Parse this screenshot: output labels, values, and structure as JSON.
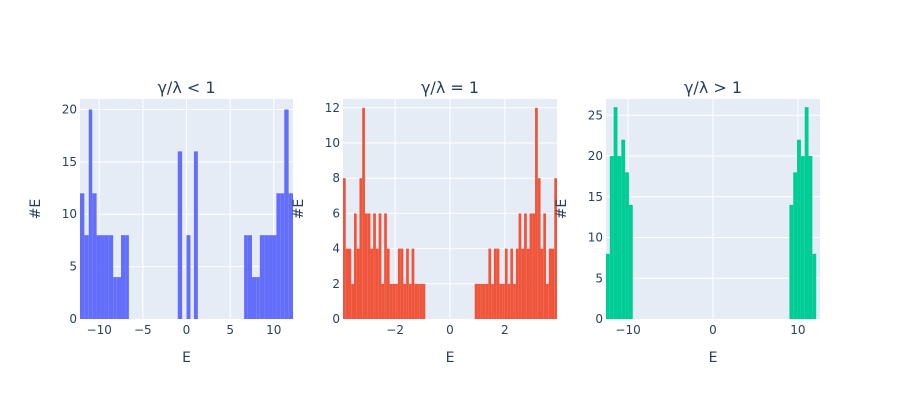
{
  "chart_data": [
    {
      "type": "bar",
      "title": "γ/λ < 1",
      "xlabel": "E",
      "ylabel": "#E",
      "color": "#636efa",
      "plot_bg": "#e5ecf6",
      "xlim": [
        -12.2,
        12.2
      ],
      "ylim": [
        0,
        21
      ],
      "xticks": [
        -10,
        -5,
        0,
        5,
        10
      ],
      "xtick_labels": [
        "−10",
        "−5",
        "0",
        "5",
        "10"
      ],
      "yticks": [
        0,
        5,
        10,
        15,
        20
      ],
      "ytick_labels": [
        "0",
        "5",
        "10",
        "15",
        "20"
      ],
      "bins": [
        {
          "x0": -12.2,
          "x1": -11.7,
          "y": 12
        },
        {
          "x0": -11.7,
          "x1": -11.2,
          "y": 8
        },
        {
          "x0": -11.2,
          "x1": -10.8,
          "y": 20
        },
        {
          "x0": -10.8,
          "x1": -10.3,
          "y": 12
        },
        {
          "x0": -10.3,
          "x1": -9.8,
          "y": 8
        },
        {
          "x0": -9.8,
          "x1": -9.4,
          "y": 8
        },
        {
          "x0": -9.4,
          "x1": -8.9,
          "y": 8
        },
        {
          "x0": -8.9,
          "x1": -8.4,
          "y": 8
        },
        {
          "x0": -8.4,
          "x1": -8.0,
          "y": 4
        },
        {
          "x0": -8.0,
          "x1": -7.5,
          "y": 4
        },
        {
          "x0": -7.5,
          "x1": -7.0,
          "y": 8
        },
        {
          "x0": -7.0,
          "x1": -6.6,
          "y": 8
        },
        {
          "x0": -1.0,
          "x1": -0.5,
          "y": 16
        },
        {
          "x0": 0.0,
          "x1": 0.45,
          "y": 8
        },
        {
          "x0": 0.85,
          "x1": 1.3,
          "y": 16
        },
        {
          "x0": 6.6,
          "x1": 7.0,
          "y": 8
        },
        {
          "x0": 7.0,
          "x1": 7.5,
          "y": 8
        },
        {
          "x0": 7.5,
          "x1": 8.0,
          "y": 4
        },
        {
          "x0": 8.0,
          "x1": 8.4,
          "y": 4
        },
        {
          "x0": 8.4,
          "x1": 8.9,
          "y": 8
        },
        {
          "x0": 8.9,
          "x1": 9.4,
          "y": 8
        },
        {
          "x0": 9.4,
          "x1": 9.8,
          "y": 8
        },
        {
          "x0": 9.8,
          "x1": 10.3,
          "y": 8
        },
        {
          "x0": 10.3,
          "x1": 10.8,
          "y": 12
        },
        {
          "x0": 10.8,
          "x1": 11.2,
          "y": 12
        },
        {
          "x0": 11.2,
          "x1": 11.7,
          "y": 20
        },
        {
          "x0": 11.7,
          "x1": 12.2,
          "y": 12
        }
      ]
    },
    {
      "type": "bar",
      "title": "γ/λ = 1",
      "xlabel": "E",
      "ylabel": "#E",
      "color": "#ef553b",
      "plot_bg": "#e5ecf6",
      "xlim": [
        -3.9,
        3.9
      ],
      "ylim": [
        0,
        12.5
      ],
      "xticks": [
        -2,
        0,
        2
      ],
      "xtick_labels": [
        "−2",
        "0",
        "2"
      ],
      "yticks": [
        0,
        2,
        4,
        6,
        8,
        10,
        12
      ],
      "ytick_labels": [
        "0",
        "2",
        "4",
        "6",
        "8",
        "10",
        "12"
      ],
      "bins": [
        {
          "x0": -3.9,
          "x1": -3.8,
          "y": 8
        },
        {
          "x0": -3.8,
          "x1": -3.7,
          "y": 4
        },
        {
          "x0": -3.7,
          "x1": -3.6,
          "y": 4
        },
        {
          "x0": -3.6,
          "x1": -3.5,
          "y": 2
        },
        {
          "x0": -3.5,
          "x1": -3.4,
          "y": 6
        },
        {
          "x0": -3.4,
          "x1": -3.3,
          "y": 4
        },
        {
          "x0": -3.3,
          "x1": -3.2,
          "y": 8
        },
        {
          "x0": -3.2,
          "x1": -3.1,
          "y": 12
        },
        {
          "x0": -3.1,
          "x1": -3.0,
          "y": 6
        },
        {
          "x0": -3.0,
          "x1": -2.9,
          "y": 6
        },
        {
          "x0": -2.9,
          "x1": -2.8,
          "y": 4
        },
        {
          "x0": -2.8,
          "x1": -2.7,
          "y": 6
        },
        {
          "x0": -2.7,
          "x1": -2.6,
          "y": 4
        },
        {
          "x0": -2.6,
          "x1": -2.5,
          "y": 6
        },
        {
          "x0": -2.5,
          "x1": -2.4,
          "y": 2
        },
        {
          "x0": -2.4,
          "x1": -2.3,
          "y": 6
        },
        {
          "x0": -2.3,
          "x1": -2.2,
          "y": 4
        },
        {
          "x0": -2.2,
          "x1": -2.1,
          "y": 2
        },
        {
          "x0": -2.1,
          "x1": -2.0,
          "y": 2
        },
        {
          "x0": -2.0,
          "x1": -1.9,
          "y": 2
        },
        {
          "x0": -1.9,
          "x1": -1.8,
          "y": 4
        },
        {
          "x0": -1.8,
          "x1": -1.7,
          "y": 4
        },
        {
          "x0": -1.7,
          "x1": -1.6,
          "y": 2
        },
        {
          "x0": -1.6,
          "x1": -1.5,
          "y": 4
        },
        {
          "x0": -1.5,
          "x1": -1.4,
          "y": 2
        },
        {
          "x0": -1.4,
          "x1": -1.3,
          "y": 4
        },
        {
          "x0": -1.3,
          "x1": -1.2,
          "y": 2
        },
        {
          "x0": -1.2,
          "x1": -1.1,
          "y": 2
        },
        {
          "x0": -1.1,
          "x1": -1.0,
          "y": 2
        },
        {
          "x0": -1.0,
          "x1": -0.9,
          "y": 2
        },
        {
          "x0": 0.9,
          "x1": 1.0,
          "y": 2
        },
        {
          "x0": 1.0,
          "x1": 1.1,
          "y": 2
        },
        {
          "x0": 1.1,
          "x1": 1.2,
          "y": 2
        },
        {
          "x0": 1.2,
          "x1": 1.3,
          "y": 2
        },
        {
          "x0": 1.3,
          "x1": 1.4,
          "y": 2
        },
        {
          "x0": 1.4,
          "x1": 1.5,
          "y": 4
        },
        {
          "x0": 1.5,
          "x1": 1.6,
          "y": 2
        },
        {
          "x0": 1.6,
          "x1": 1.7,
          "y": 4
        },
        {
          "x0": 1.7,
          "x1": 1.8,
          "y": 4
        },
        {
          "x0": 1.8,
          "x1": 1.9,
          "y": 2
        },
        {
          "x0": 1.9,
          "x1": 2.0,
          "y": 2
        },
        {
          "x0": 2.0,
          "x1": 2.1,
          "y": 4
        },
        {
          "x0": 2.1,
          "x1": 2.2,
          "y": 2
        },
        {
          "x0": 2.2,
          "x1": 2.3,
          "y": 4
        },
        {
          "x0": 2.3,
          "x1": 2.4,
          "y": 2
        },
        {
          "x0": 2.4,
          "x1": 2.5,
          "y": 4
        },
        {
          "x0": 2.5,
          "x1": 2.6,
          "y": 6
        },
        {
          "x0": 2.6,
          "x1": 2.7,
          "y": 4
        },
        {
          "x0": 2.7,
          "x1": 2.8,
          "y": 6
        },
        {
          "x0": 2.8,
          "x1": 2.9,
          "y": 4
        },
        {
          "x0": 2.9,
          "x1": 3.0,
          "y": 6
        },
        {
          "x0": 3.0,
          "x1": 3.1,
          "y": 6
        },
        {
          "x0": 3.1,
          "x1": 3.2,
          "y": 12
        },
        {
          "x0": 3.2,
          "x1": 3.3,
          "y": 8
        },
        {
          "x0": 3.3,
          "x1": 3.4,
          "y": 4
        },
        {
          "x0": 3.4,
          "x1": 3.5,
          "y": 6
        },
        {
          "x0": 3.5,
          "x1": 3.6,
          "y": 2
        },
        {
          "x0": 3.6,
          "x1": 3.7,
          "y": 4
        },
        {
          "x0": 3.7,
          "x1": 3.8,
          "y": 4
        },
        {
          "x0": 3.8,
          "x1": 3.9,
          "y": 8
        }
      ]
    },
    {
      "type": "bar",
      "title": "γ/λ > 1",
      "xlabel": "E",
      "ylabel": "#E",
      "color": "#00cc96",
      "plot_bg": "#e5ecf6",
      "xlim": [
        -12.6,
        12.6
      ],
      "ylim": [
        0,
        27
      ],
      "xticks": [
        -10,
        0,
        10
      ],
      "xtick_labels": [
        "−10",
        "0",
        "10"
      ],
      "yticks": [
        0,
        5,
        10,
        15,
        20,
        25
      ],
      "ytick_labels": [
        "0",
        "5",
        "10",
        "15",
        "20",
        "25"
      ],
      "bins": [
        {
          "x0": -12.6,
          "x1": -12.15,
          "y": 8
        },
        {
          "x0": -12.15,
          "x1": -11.7,
          "y": 20
        },
        {
          "x0": -11.7,
          "x1": -11.25,
          "y": 26
        },
        {
          "x0": -11.25,
          "x1": -10.8,
          "y": 20
        },
        {
          "x0": -10.8,
          "x1": -10.35,
          "y": 22
        },
        {
          "x0": -10.35,
          "x1": -9.9,
          "y": 18
        },
        {
          "x0": -9.9,
          "x1": -9.45,
          "y": 14
        },
        {
          "x0": 9.0,
          "x1": 9.45,
          "y": 14
        },
        {
          "x0": 9.45,
          "x1": 9.9,
          "y": 18
        },
        {
          "x0": 9.9,
          "x1": 10.35,
          "y": 22
        },
        {
          "x0": 10.35,
          "x1": 10.8,
          "y": 20
        },
        {
          "x0": 10.8,
          "x1": 11.25,
          "y": 26
        },
        {
          "x0": 11.25,
          "x1": 11.7,
          "y": 20
        },
        {
          "x0": 11.7,
          "x1": 12.15,
          "y": 8
        }
      ]
    }
  ]
}
